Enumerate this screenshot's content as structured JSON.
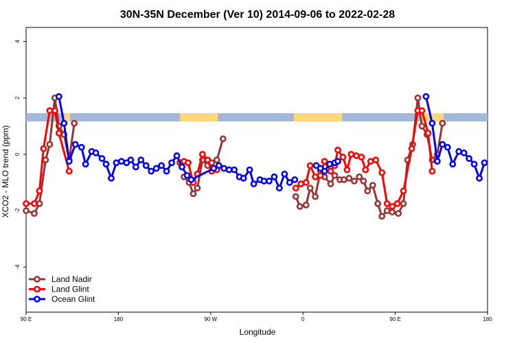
{
  "chart_data": {
    "type": "line",
    "title": "30N-35N December (Ver 10)   2014-09-06 to 2022-02-28",
    "x_label": "Longitude",
    "y_label": "XCO2 - MLO trend (ppm)",
    "xlim": [
      90,
      540
    ],
    "ylim": [
      -5.6,
      4.5
    ],
    "xticks": [
      {
        "value": 90,
        "label": "90 E"
      },
      180,
      {
        "value": 270,
        "label": "90 W"
      },
      0,
      {
        "value": 450,
        "label": "90 E"
      },
      {
        "value": 540,
        "label": "180"
      }
    ],
    "yticks": [
      -4,
      -2,
      0,
      2,
      4
    ],
    "legend": "bottom-left",
    "series": [
      {
        "name": "Land Nadir",
        "color": "#993333",
        "x": [
          90,
          98,
          103,
          109,
          113,
          118,
          122,
          127,
          132,
          137,
          190,
          244,
          249,
          253,
          257,
          262,
          267,
          271,
          276,
          282,
          320,
          353,
          357,
          363,
          367,
          372,
          377,
          381,
          387,
          391,
          396,
          400,
          405,
          410,
          415,
          419,
          423,
          428,
          433,
          437,
          442,
          447,
          453,
          458,
          462,
          467,
          472,
          476,
          481,
          486,
          491,
          496
        ],
        "values": [
          -2.0,
          -2.1,
          -1.75,
          -0.2,
          0.35,
          2.0,
          1.0,
          0.7,
          -0.2,
          1.1,
          null,
          -0.8,
          -1.0,
          -1.4,
          -1.2,
          -0.2,
          -0.4,
          -0.3,
          -0.2,
          0.55,
          null,
          -1.5,
          -1.85,
          -1.8,
          -1.2,
          -1.5,
          -0.6,
          -0.8,
          -1.05,
          -0.75,
          -0.9,
          -0.9,
          -0.85,
          -0.95,
          -0.8,
          -0.95,
          -1.3,
          -1.1,
          -1.75,
          -2.2,
          -2.0,
          -2.05,
          -2.1,
          -1.75,
          -0.2,
          0.35,
          2.0,
          1.0,
          0.7,
          -0.2,
          0.0,
          1.1
        ]
      },
      {
        "name": "Land Glint",
        "color": "#ff0000",
        "x": [
          90,
          98,
          103,
          107,
          113,
          118,
          122,
          132,
          190,
          240,
          244,
          248,
          253,
          257,
          262,
          267,
          271,
          276,
          320,
          353,
          358,
          363,
          367,
          372,
          377,
          381,
          387,
          391,
          394,
          399,
          403,
          407,
          412,
          417,
          421,
          426,
          431,
          437,
          442,
          447,
          452,
          458,
          466,
          472,
          476,
          482,
          486
        ],
        "values": [
          -1.75,
          -1.75,
          -1.3,
          0.2,
          1.55,
          1.55,
          0.75,
          -0.6,
          null,
          -0.3,
          -0.25,
          -0.3,
          -1.0,
          -0.7,
          0.0,
          -0.2,
          -0.6,
          -0.55,
          null,
          -1.2,
          -1.05,
          -1.0,
          -0.4,
          -0.8,
          -0.75,
          -0.25,
          -0.6,
          -0.4,
          0.15,
          -0.1,
          -0.55,
          0.0,
          -0.05,
          -0.1,
          -0.55,
          -0.25,
          -0.2,
          -0.65,
          -1.75,
          -1.85,
          -1.75,
          -1.3,
          0.2,
          1.55,
          1.55,
          0.75,
          -0.6
        ]
      },
      {
        "name": "Ocean Glint",
        "color": "#0000ee",
        "x": [
          122,
          127,
          132,
          138,
          144,
          148,
          154,
          158,
          164,
          168,
          173,
          178,
          183,
          188,
          192,
          197,
          202,
          207,
          212,
          217,
          222,
          227,
          232,
          237,
          242,
          247,
          251,
          273,
          278,
          283,
          288,
          293,
          298,
          302,
          308,
          312,
          318,
          322,
          327,
          332,
          337,
          342,
          347,
          352,
          362,
          373,
          377,
          381,
          386,
          391,
          394,
          440,
          480,
          486,
          491,
          496,
          501,
          506,
          512,
          517,
          522,
          527,
          532,
          537
        ],
        "values": [
          2.05,
          1.1,
          -0.25,
          0.35,
          0.25,
          -0.35,
          0.1,
          0.05,
          -0.15,
          -0.35,
          -0.85,
          -0.3,
          -0.25,
          -0.3,
          -0.2,
          -0.45,
          -0.2,
          -0.4,
          -0.6,
          -0.5,
          -0.4,
          -0.6,
          -0.3,
          -0.05,
          -0.45,
          -0.75,
          -0.9,
          -0.5,
          -0.4,
          -0.5,
          -0.55,
          -0.55,
          -0.8,
          -0.85,
          -0.55,
          -1.05,
          -0.9,
          -0.95,
          -0.95,
          -0.8,
          -1.2,
          -0.7,
          -1.0,
          -0.9,
          null,
          -0.4,
          -0.5,
          -0.6,
          -0.35,
          -0.3,
          -0.25,
          null,
          2.05,
          1.1,
          -0.25,
          0.35,
          0.25,
          -0.35,
          0.1,
          0.05,
          -0.15,
          -0.35,
          -0.85,
          -0.3
        ]
      }
    ]
  }
}
